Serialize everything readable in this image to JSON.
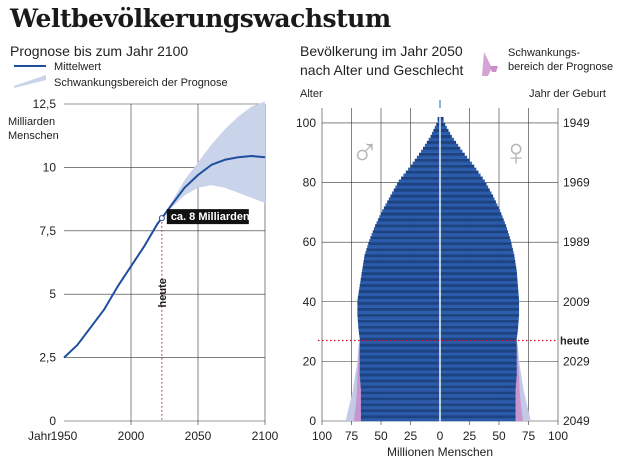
{
  "title": "Weltbevölkerungswachstum",
  "colors": {
    "line": "#1f4e9e",
    "band": "#c9d3ea",
    "bar_blue": "#2a5cab",
    "bar_stripe": "#1d4383",
    "pink_band": "#c98dc9",
    "light_band": "#c3c9e6",
    "today": "#c8102e",
    "grid": "#333333"
  },
  "chart_data": [
    {
      "type": "line",
      "subtitle": "Prognose bis zum Jahr 2100",
      "legend": {
        "line_label": "Mittelwert",
        "band_label": "Schwankungsbereich der Prognose"
      },
      "ylabel": "Milliarden Menschen",
      "xlabel": "Jahr",
      "xlim": [
        1950,
        2100
      ],
      "ylim": [
        0,
        12.5
      ],
      "x_ticks": [
        1950,
        2000,
        2050,
        2100
      ],
      "y_ticks": [
        0,
        2.5,
        5,
        7.5,
        10,
        12.5
      ],
      "y_tick_labels": [
        "0",
        "2,5",
        "5",
        "7,5",
        "10",
        "12,5"
      ],
      "series": [
        {
          "x": [
            1950,
            1960,
            1970,
            1980,
            1990,
            2000,
            2010,
            2020,
            2023,
            2030,
            2040,
            2050,
            2060,
            2070,
            2080,
            2090,
            2100
          ],
          "values": [
            2.5,
            3.0,
            3.7,
            4.4,
            5.3,
            6.1,
            6.9,
            7.8,
            8.0,
            8.5,
            9.2,
            9.7,
            10.1,
            10.3,
            10.4,
            10.45,
            10.4
          ]
        }
      ],
      "band": {
        "x": [
          2023,
          2030,
          2040,
          2050,
          2060,
          2070,
          2080,
          2090,
          2100
        ],
        "low": [
          8.0,
          8.4,
          8.9,
          9.2,
          9.3,
          9.2,
          9.0,
          8.8,
          8.6
        ],
        "high": [
          8.0,
          8.6,
          9.5,
          10.2,
          10.9,
          11.5,
          12.0,
          12.4,
          12.6
        ]
      },
      "annotations": {
        "today_year": 2023,
        "today_label": "heute",
        "point_label": "ca. 8 Milliarden"
      }
    },
    {
      "type": "bar",
      "subtitle": "Bevölkerung im Jahr 2050 nach Alter und Geschlecht",
      "legend": {
        "band_label": "Schwankungs-bereich der Prognose"
      },
      "left_axis_label": "Alter",
      "right_axis_label": "Jahr der Geburt",
      "xlabel": "Millionen Menschen",
      "x_ticks": [
        100,
        75,
        50,
        25,
        0,
        25,
        50,
        75,
        100
      ],
      "age_ticks": [
        0,
        20,
        40,
        60,
        80,
        100
      ],
      "birth_year_ticks": [
        2049,
        2029,
        2009,
        1989,
        1969,
        1949
      ],
      "xlim": [
        -100,
        100
      ],
      "ylim": [
        0,
        105
      ],
      "today_age": 27,
      "today_label": "heute",
      "male_symbol": "♂",
      "female_symbol": "♀",
      "profile": {
        "ages": [
          0,
          5,
          10,
          15,
          20,
          25,
          27,
          30,
          35,
          40,
          45,
          50,
          55,
          60,
          65,
          70,
          75,
          80,
          85,
          90,
          95,
          100
        ],
        "male": [
          67,
          67,
          67,
          68,
          68,
          68,
          68,
          69,
          70,
          70,
          68,
          66,
          64,
          60,
          55,
          49,
          42,
          35,
          25,
          16,
          8,
          2
        ],
        "female": [
          64,
          64,
          64,
          65,
          65,
          65,
          65,
          66,
          67,
          67,
          66,
          65,
          63,
          60,
          56,
          51,
          45,
          38,
          29,
          19,
          10,
          3
        ]
      },
      "uncertainty": {
        "ages": [
          0,
          5,
          10,
          15,
          20,
          25,
          27
        ],
        "male_low": [
          52,
          55,
          60,
          64,
          67,
          68,
          68
        ],
        "male_high": [
          80,
          77,
          74,
          72,
          70,
          69,
          68
        ],
        "female_low": [
          50,
          53,
          57,
          61,
          64,
          65,
          65
        ],
        "female_high": [
          77,
          74,
          71,
          69,
          67,
          66,
          65
        ]
      }
    }
  ]
}
